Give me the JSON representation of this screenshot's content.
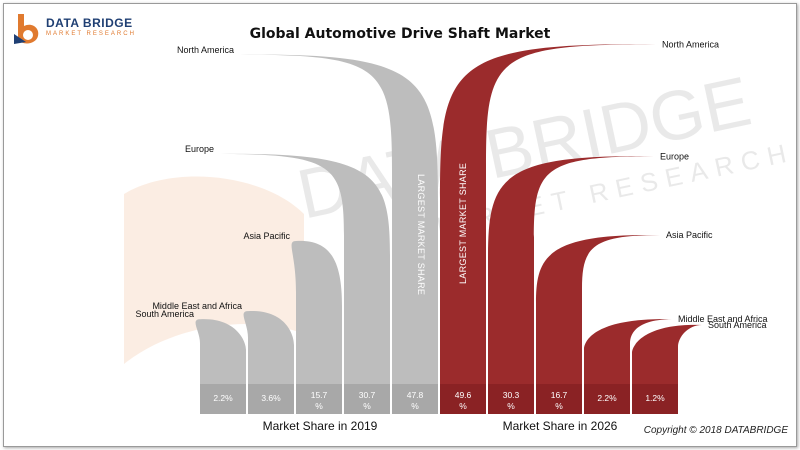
{
  "brand": {
    "name": "DATA BRIDGE",
    "sub": "MARKET RESEARCH",
    "watermark_main": "DATA BRIDGE",
    "watermark_sub": "MARKET RESEARCH"
  },
  "copyright": "Copyright © 2018 DATABRIDGE",
  "colors": {
    "left": "#bdbdbd",
    "right": "#9b2b2c",
    "left_base": "#a8a8a8",
    "right_base": "#8a2224"
  },
  "chart_data": {
    "type": "bar",
    "title": "Global Automotive Drive Shaft Market",
    "annotation": "LARGEST MARKET SHARE",
    "series": [
      {
        "name": "Market Share in 2019",
        "categories": [
          "South America",
          "Middle East and Africa",
          "Asia Pacific",
          "Europe",
          "North America"
        ],
        "values": [
          2.2,
          3.6,
          15.7,
          30.7,
          47.8
        ],
        "value_labels": [
          "2.2%",
          "3.6%",
          "15.7%",
          "30.7%",
          "47.8%"
        ]
      },
      {
        "name": "Market Share in 2026",
        "categories": [
          "North America",
          "Europe",
          "Asia Pacific",
          "Middle East and Africa",
          "South America"
        ],
        "values": [
          49.6,
          30.3,
          16.7,
          2.2,
          1.2
        ],
        "value_labels": [
          "49.6%",
          "30.3%",
          "16.7%",
          "2.2%",
          "1.2%"
        ]
      }
    ],
    "unit": "%",
    "ylim": [
      0,
      50
    ]
  }
}
